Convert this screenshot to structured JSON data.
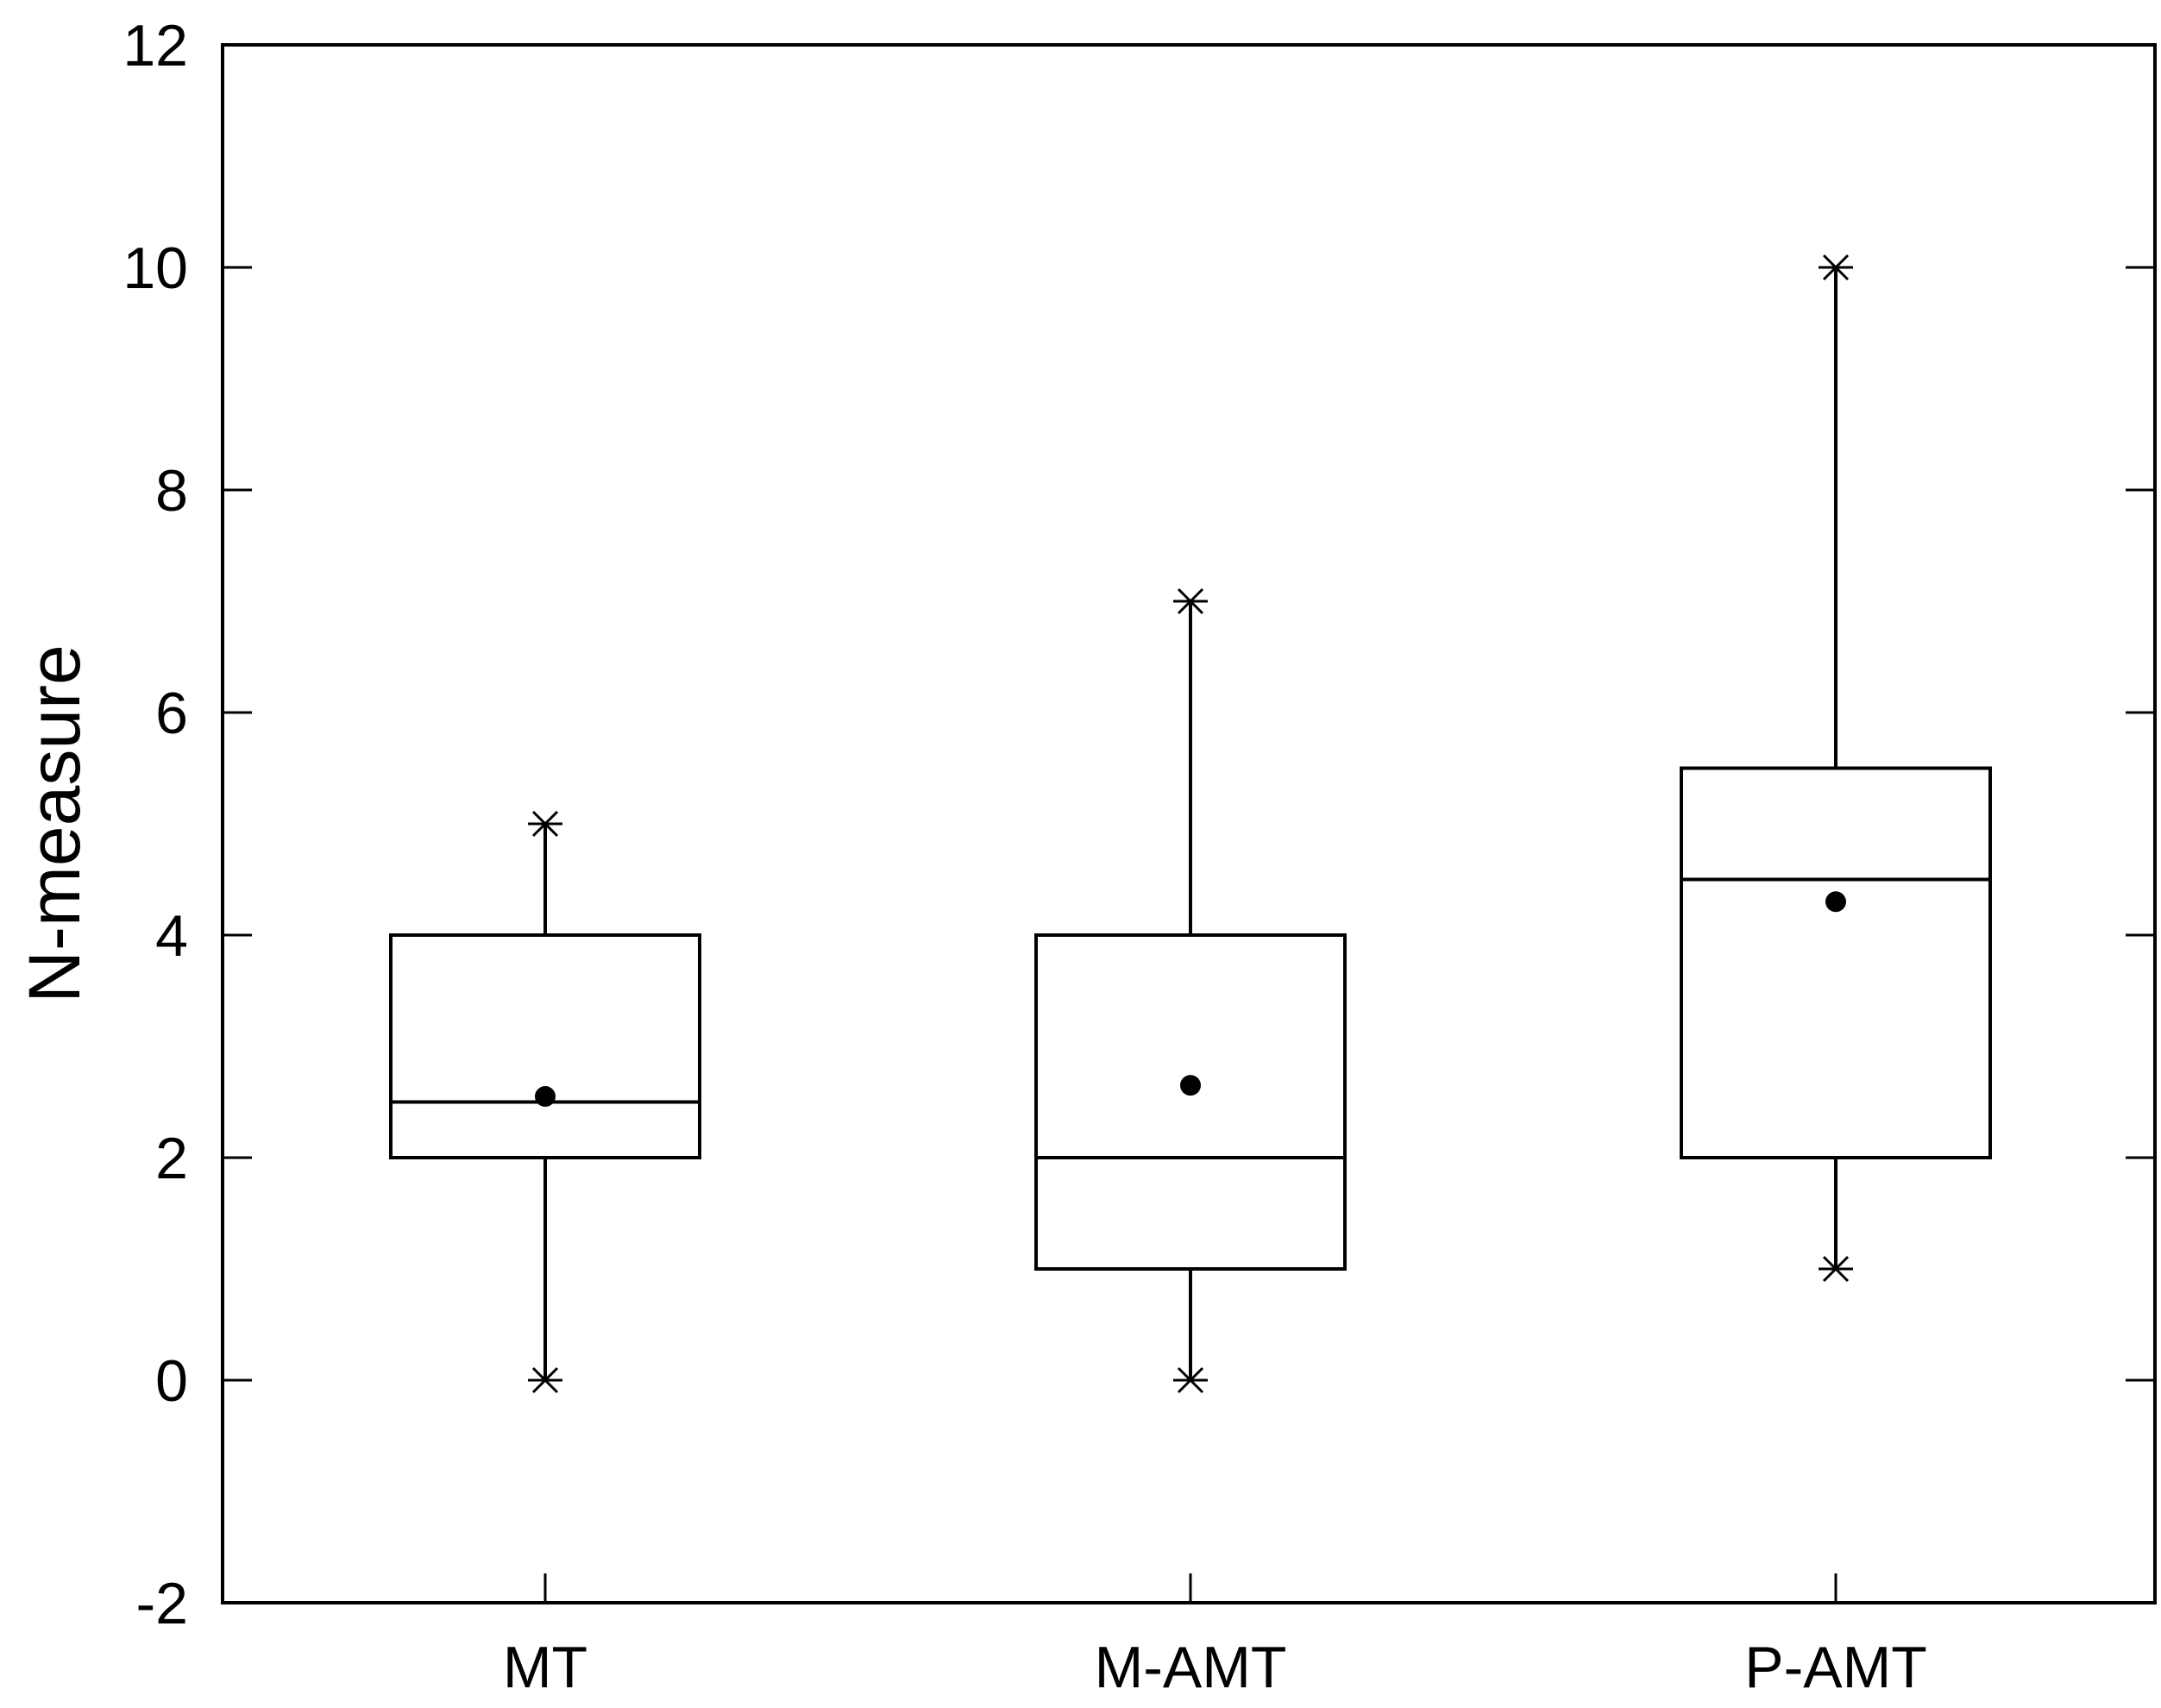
{
  "chart_data": {
    "type": "box",
    "ylabel": "N-measure",
    "ylim": [
      -2,
      12
    ],
    "yticks": [
      -2,
      0,
      2,
      4,
      6,
      8,
      10,
      12
    ],
    "grid": false,
    "categories": [
      "MT",
      "M-AMT",
      "P-AMT"
    ],
    "boxes": [
      {
        "category": "MT",
        "min": 0,
        "q1": 2,
        "median": 2.5,
        "q3": 4,
        "max": 5,
        "mean": 2.55
      },
      {
        "category": "M-AMT",
        "min": 0,
        "q1": 1,
        "median": 2,
        "q3": 4,
        "max": 7,
        "mean": 2.65
      },
      {
        "category": "P-AMT",
        "min": 1,
        "q1": 2,
        "median": 4.5,
        "q3": 5.5,
        "max": 10,
        "mean": 4.3
      }
    ]
  }
}
